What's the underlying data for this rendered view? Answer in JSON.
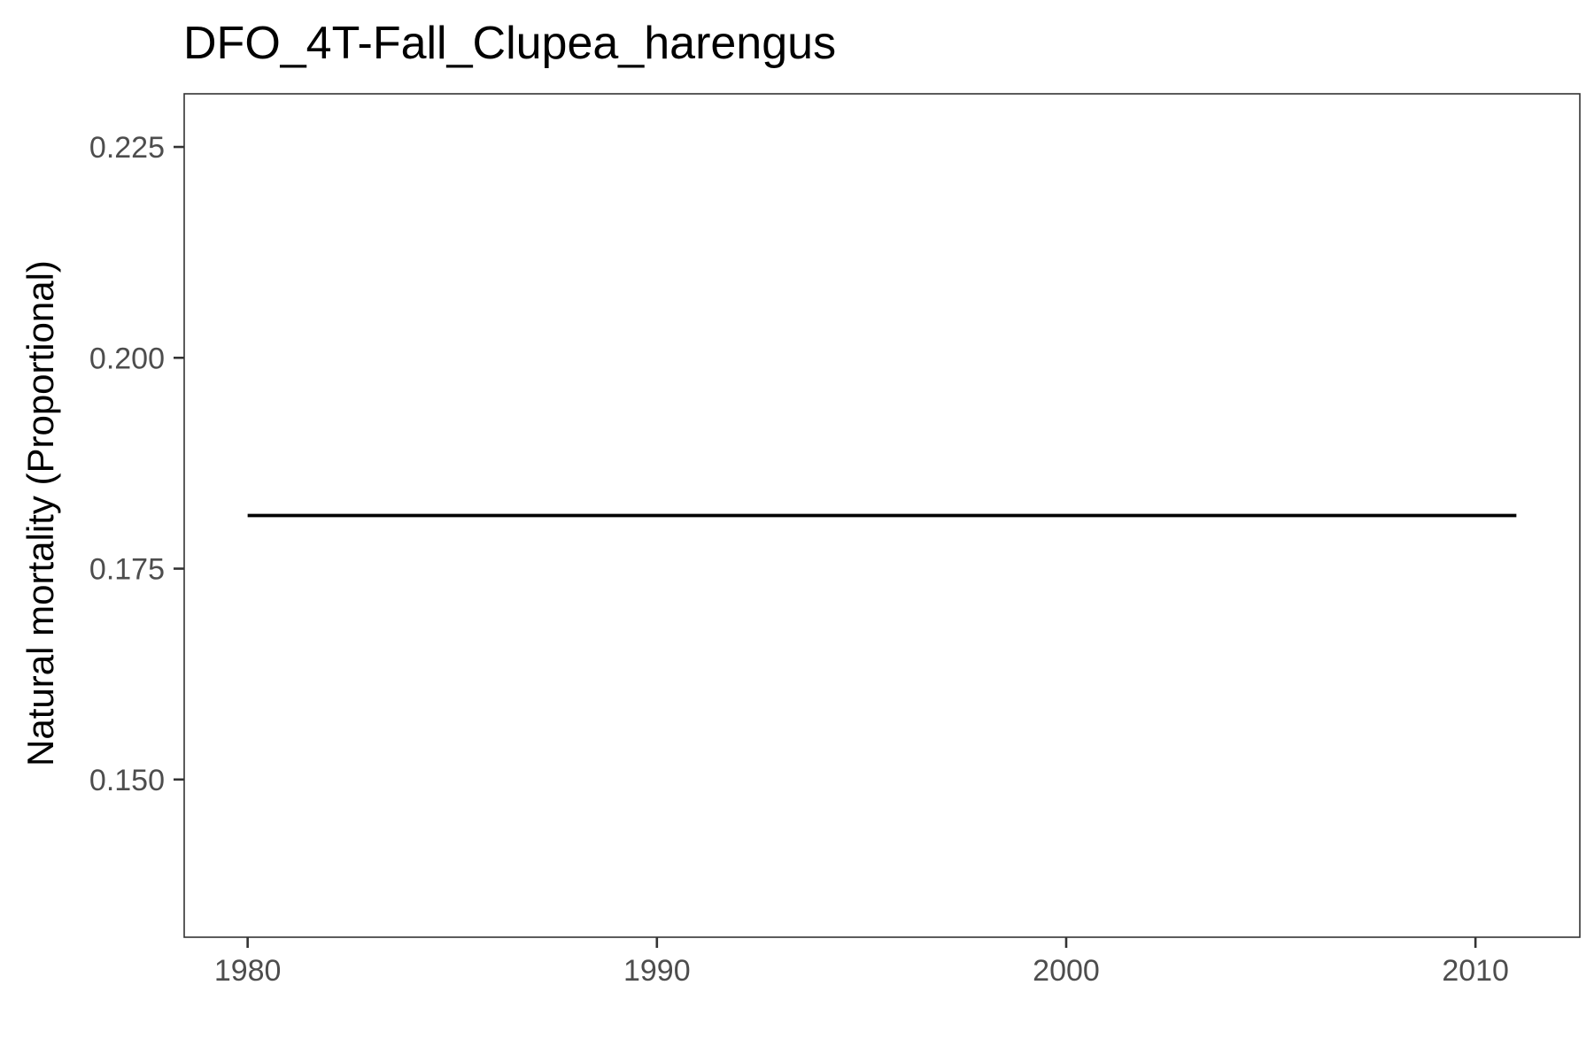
{
  "chart_data": {
    "type": "line",
    "title": "DFO_4T-Fall_Clupea_harengus",
    "xlabel": "",
    "ylabel": "Natural mortality (Proportional)",
    "x": [
      1980,
      1981,
      1982,
      1983,
      1984,
      1985,
      1986,
      1987,
      1988,
      1989,
      1990,
      1991,
      1992,
      1993,
      1994,
      1995,
      1996,
      1997,
      1998,
      1999,
      2000,
      2001,
      2002,
      2003,
      2004,
      2005,
      2006,
      2007,
      2008,
      2009,
      2010,
      2011
    ],
    "series": [
      {
        "values": [
          0.1813,
          0.1813,
          0.1813,
          0.1813,
          0.1813,
          0.1813,
          0.1813,
          0.1813,
          0.1813,
          0.1813,
          0.1813,
          0.1813,
          0.1813,
          0.1813,
          0.1813,
          0.1813,
          0.1813,
          0.1813,
          0.1813,
          0.1813,
          0.1813,
          0.1813,
          0.1813,
          0.1813,
          0.1813,
          0.1813,
          0.1813,
          0.1813,
          0.1813,
          0.1813,
          0.1813,
          0.1813
        ],
        "color": "#000000"
      }
    ],
    "xticks": [
      1980,
      1990,
      2000,
      2010
    ],
    "xtick_labels": [
      "1980",
      "1990",
      "2000",
      "2010"
    ],
    "yticks": [
      0.15,
      0.175,
      0.2,
      0.225
    ],
    "ytick_labels": [
      "0.150",
      "0.175",
      "0.200",
      "0.225"
    ],
    "xlim": [
      1978.45,
      2012.55
    ],
    "ylim": [
      0.1313,
      0.2313
    ],
    "grid": false,
    "legend": "none",
    "colors": {
      "panel_border": "#333333",
      "tick_text": "#4d4d4d",
      "axis_ticks": "#333333"
    }
  }
}
